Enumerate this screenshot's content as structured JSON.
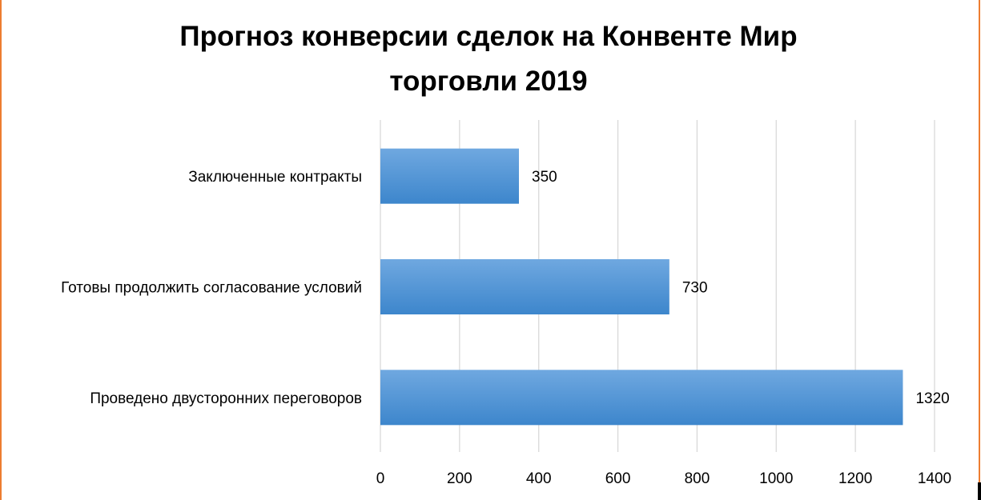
{
  "colors": {
    "bar_top": "#6fa8e0",
    "bar_bottom": "#3d86cc",
    "frame": "#ed7d31",
    "grid": "#d9d9d9",
    "text": "#000000"
  },
  "chart_data": {
    "type": "bar",
    "orientation": "horizontal",
    "title": "Прогноз конверсии сделок на Конвенте Мир торговли 2019",
    "categories": [
      "Заключенные контракты",
      "Готовы продолжить согласование условий",
      "Проведено двусторонних переговоров"
    ],
    "values": [
      350,
      730,
      1320
    ],
    "data_labels": [
      "350",
      "730",
      "1320"
    ],
    "xlim": [
      0,
      1400
    ],
    "x_ticks": [
      "0",
      "200",
      "400",
      "600",
      "800",
      "1000",
      "1200",
      "1400"
    ],
    "grid": "vertical",
    "legend": "none"
  }
}
